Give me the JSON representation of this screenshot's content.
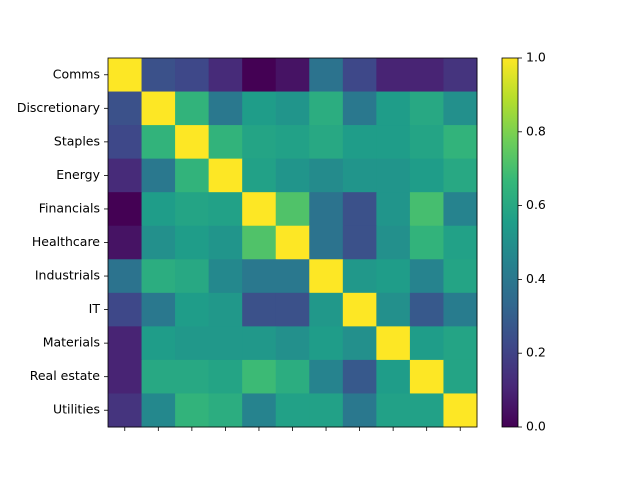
{
  "chart_data": {
    "type": "heatmap",
    "colormap": "viridis",
    "categories": [
      "Comms",
      "Discretionary",
      "Staples",
      "Energy",
      "Financials",
      "Healthcare",
      "Industrials",
      "IT",
      "Materials",
      "Real estate",
      "Utilities"
    ],
    "matrix": [
      [
        1,
        0.25,
        0.22,
        0.12,
        0.0,
        0.05,
        0.38,
        0.22,
        0.1,
        0.1,
        0.15
      ],
      [
        0.25,
        1,
        0.65,
        0.4,
        0.55,
        0.52,
        0.62,
        0.4,
        0.55,
        0.6,
        0.5
      ],
      [
        0.22,
        0.65,
        1,
        0.65,
        0.58,
        0.57,
        0.6,
        0.55,
        0.55,
        0.58,
        0.65
      ],
      [
        0.12,
        0.4,
        0.65,
        1,
        0.57,
        0.52,
        0.48,
        0.52,
        0.52,
        0.55,
        0.6
      ],
      [
        0.0,
        0.55,
        0.58,
        0.57,
        1,
        0.72,
        0.38,
        0.25,
        0.52,
        0.7,
        0.45
      ],
      [
        0.05,
        0.5,
        0.55,
        0.52,
        0.72,
        1,
        0.38,
        0.25,
        0.5,
        0.65,
        0.57
      ],
      [
        0.38,
        0.62,
        0.6,
        0.47,
        0.4,
        0.4,
        1,
        0.53,
        0.55,
        0.45,
        0.58
      ],
      [
        0.22,
        0.4,
        0.55,
        0.53,
        0.25,
        0.25,
        0.53,
        1,
        0.5,
        0.28,
        0.42
      ],
      [
        0.1,
        0.55,
        0.53,
        0.53,
        0.53,
        0.5,
        0.55,
        0.5,
        1,
        0.55,
        0.58
      ],
      [
        0.1,
        0.6,
        0.6,
        0.58,
        0.68,
        0.62,
        0.45,
        0.28,
        0.55,
        1,
        0.58
      ],
      [
        0.15,
        0.47,
        0.65,
        0.62,
        0.45,
        0.57,
        0.57,
        0.4,
        0.57,
        0.57,
        1
      ]
    ],
    "clim": [
      0,
      1
    ],
    "cticks": [
      {
        "value": 0,
        "label": "0.0"
      },
      0.2,
      0.4,
      0.6,
      0.8,
      {
        "value": 1,
        "label": "1.0"
      }
    ]
  }
}
